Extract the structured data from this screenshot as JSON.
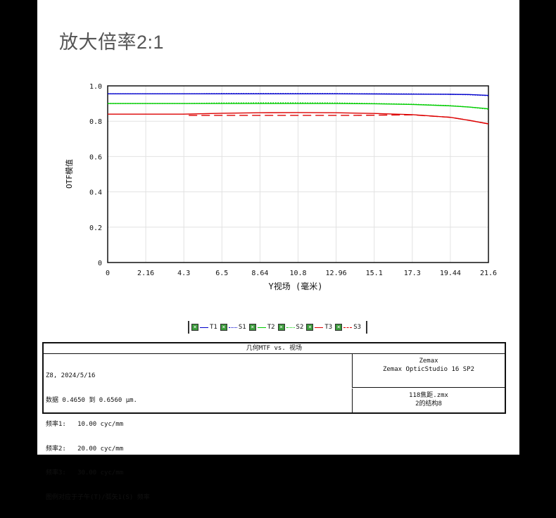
{
  "heading": "放大倍率2:1",
  "chart_data": {
    "type": "line",
    "xlabel": "Y视场 (毫米)",
    "ylabel": "OTF模值",
    "xlim": [
      0,
      21.6
    ],
    "ylim": [
      0,
      1.0
    ],
    "x_ticks": [
      "0",
      "2.16",
      "4.3",
      "6.5",
      "8.64",
      "10.8",
      "12.96",
      "15.1",
      "17.3",
      "19.44",
      "21.6"
    ],
    "y_ticks": [
      "0",
      "0.2",
      "0.4",
      "0.6",
      "0.8",
      "1.0"
    ],
    "grid": true,
    "legend_position": "bottom",
    "series": [
      {
        "name": "T1",
        "color": "#0000cc",
        "dash": "solid",
        "x": [
          0,
          2.16,
          4.3,
          6.5,
          8.64,
          10.8,
          12.96,
          15.1,
          17.3,
          19.44,
          20.5,
          21.6
        ],
        "y": [
          0.955,
          0.955,
          0.955,
          0.955,
          0.955,
          0.955,
          0.955,
          0.954,
          0.953,
          0.952,
          0.951,
          0.946
        ]
      },
      {
        "name": "S1",
        "color": "#0000cc",
        "dash": "dotted",
        "x": [
          0,
          2.16,
          4.3,
          6.5,
          8.64,
          10.8,
          12.96,
          15.1,
          17.3,
          19.44,
          20.5,
          21.6
        ],
        "y": [
          0.955,
          0.955,
          0.955,
          0.956,
          0.956,
          0.956,
          0.956,
          0.955,
          0.954,
          0.952,
          0.95,
          0.945
        ]
      },
      {
        "name": "T2",
        "color": "#00cc00",
        "dash": "solid",
        "x": [
          0,
          2.16,
          4.3,
          6.5,
          8.64,
          10.8,
          12.96,
          15.1,
          17.3,
          19.44,
          20.5,
          21.6
        ],
        "y": [
          0.9,
          0.9,
          0.9,
          0.9,
          0.9,
          0.9,
          0.9,
          0.899,
          0.895,
          0.887,
          0.88,
          0.87
        ]
      },
      {
        "name": "S2",
        "color": "#00cc00",
        "dash": "dotted",
        "x": [
          0,
          2.16,
          4.3,
          6.5,
          8.64,
          10.8,
          12.96,
          15.1,
          17.3,
          19.44,
          20.5,
          21.6
        ],
        "y": [
          0.9,
          0.9,
          0.9,
          0.903,
          0.904,
          0.904,
          0.903,
          0.9,
          0.896,
          0.888,
          0.88,
          0.868
        ]
      },
      {
        "name": "T3",
        "color": "#dd0000",
        "dash": "solid",
        "x": [
          0,
          2.16,
          4.3,
          6.5,
          8.64,
          10.8,
          12.96,
          15.1,
          17.3,
          19.44,
          20.5,
          21.6
        ],
        "y": [
          0.84,
          0.84,
          0.84,
          0.845,
          0.848,
          0.849,
          0.848,
          0.844,
          0.837,
          0.822,
          0.805,
          0.785
        ]
      },
      {
        "name": "S3",
        "color": "#dd0000",
        "dash": "dashed",
        "x": [
          4.6,
          6.5,
          8.64,
          10.8,
          12.96,
          14.0,
          17.3,
          19.44,
          20.5,
          21.6
        ],
        "y": [
          0.833,
          0.833,
          0.833,
          0.833,
          0.833,
          0.833,
          0.836,
          0.822,
          0.805,
          0.785
        ]
      }
    ]
  },
  "info": {
    "title": "几何MTF vs. 视场",
    "left_lines": [
      "Z8, 2024/5/16",
      "数据 0.4650 到 0.6560 μm.",
      "频率1:   10.00 cyc/mm",
      "频率2:   20.00 cyc/mm",
      "频率3:   30.00 cyc/mm",
      "图例对应于子午(T)/弧矢1(S) 频率"
    ],
    "right_top_1": "Zemax",
    "right_top_2": "Zemax OpticStudio 16 SP2",
    "right_bot_1": "118焦距.zmx",
    "right_bot_2": "2的结构8"
  }
}
